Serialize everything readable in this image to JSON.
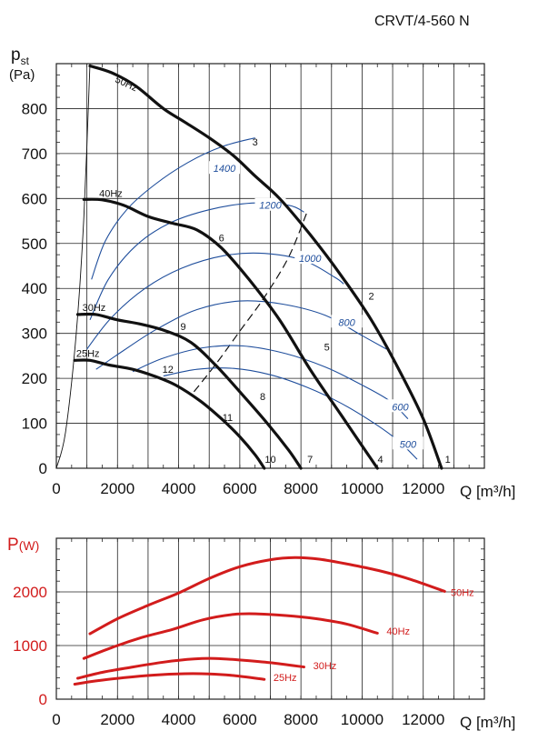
{
  "title": "CRVT/4-560 N",
  "chart_data": [
    {
      "type": "line",
      "id": "pressure",
      "ylabel_main": "p",
      "ylabel_sub": "st",
      "ylabel_unit": "(Pa)",
      "xlabel": "Q [m³/h]",
      "xlim": [
        0,
        14000
      ],
      "ylim": [
        0,
        900
      ],
      "xticks": [
        0,
        2000,
        4000,
        6000,
        8000,
        10000,
        12000
      ],
      "yticks": [
        0,
        100,
        200,
        300,
        400,
        500,
        600,
        700,
        800
      ],
      "xtick_labels": [
        "0",
        "2000",
        "4000",
        "6000",
        "8000",
        "10000",
        "12000"
      ],
      "ytick_labels": [
        "0",
        "100",
        "200",
        "300",
        "400",
        "500",
        "600",
        "700",
        "800"
      ],
      "grid": true,
      "colors": {
        "fan_curve": "#111111",
        "rpm_curve": "#1f4e9c",
        "axis": "#222222"
      },
      "fan_curves": [
        {
          "name": "50Hz",
          "points": [
            [
              1100,
              895
            ],
            [
              1800,
              880
            ],
            [
              2600,
              850
            ],
            [
              3500,
              800
            ],
            [
              4200,
              770
            ],
            [
              5000,
              735
            ],
            [
              5800,
              695
            ],
            [
              6500,
              650
            ],
            [
              7300,
              600
            ],
            [
              8300,
              520
            ],
            [
              9300,
              430
            ],
            [
              10300,
              330
            ],
            [
              11200,
              220
            ],
            [
              12000,
              110
            ],
            [
              12600,
              0
            ]
          ]
        },
        {
          "name": "40Hz",
          "points": [
            [
              900,
              598
            ],
            [
              1500,
              597
            ],
            [
              2200,
              585
            ],
            [
              3000,
              560
            ],
            [
              3800,
              545
            ],
            [
              4600,
              530
            ],
            [
              5400,
              490
            ],
            [
              6300,
              420
            ],
            [
              7300,
              330
            ],
            [
              8300,
              220
            ],
            [
              9300,
              120
            ],
            [
              10000,
              50
            ],
            [
              10500,
              0
            ]
          ]
        },
        {
          "name": "30Hz",
          "points": [
            [
              700,
              342
            ],
            [
              1300,
              342
            ],
            [
              2000,
              330
            ],
            [
              2800,
              320
            ],
            [
              3600,
              305
            ],
            [
              4400,
              280
            ],
            [
              5200,
              230
            ],
            [
              6000,
              170
            ],
            [
              6900,
              100
            ],
            [
              7600,
              40
            ],
            [
              8000,
              0
            ]
          ]
        },
        {
          "name": "25Hz",
          "points": [
            [
              600,
              240
            ],
            [
              1100,
              240
            ],
            [
              1700,
              230
            ],
            [
              2500,
              220
            ],
            [
              3200,
              205
            ],
            [
              3900,
              185
            ],
            [
              4700,
              150
            ],
            [
              5400,
              110
            ],
            [
              6000,
              70
            ],
            [
              6500,
              30
            ],
            [
              6800,
              0
            ]
          ]
        }
      ],
      "rpm_curves": [
        {
          "label": "1400",
          "label_at": [
            5500,
            665
          ],
          "points": [
            [
              1150,
              420
            ],
            [
              1600,
              505
            ],
            [
              2300,
              575
            ],
            [
              3200,
              630
            ],
            [
              4300,
              680
            ],
            [
              5400,
              715
            ],
            [
              6500,
              735
            ]
          ]
        },
        {
          "label": "1200",
          "label_at": [
            7000,
            583
          ],
          "points": [
            [
              1100,
              330
            ],
            [
              1700,
              420
            ],
            [
              2600,
              495
            ],
            [
              3700,
              545
            ],
            [
              5000,
              575
            ],
            [
              6400,
              590
            ],
            [
              7600,
              585
            ],
            [
              8100,
              570
            ]
          ]
        },
        {
          "label": "1000",
          "label_at": [
            8300,
            465
          ],
          "points": [
            [
              1000,
              265
            ],
            [
              1800,
              335
            ],
            [
              2900,
              400
            ],
            [
              4100,
              445
            ],
            [
              5500,
              473
            ],
            [
              6800,
              478
            ],
            [
              8100,
              462
            ],
            [
              9100,
              425
            ],
            [
              9400,
              410
            ]
          ]
        },
        {
          "label": "800",
          "label_at": [
            9500,
            323
          ],
          "points": [
            [
              1300,
              220
            ],
            [
              2200,
              262
            ],
            [
              3300,
              310
            ],
            [
              4600,
              353
            ],
            [
              6000,
              372
            ],
            [
              7400,
              365
            ],
            [
              8800,
              340
            ],
            [
              10000,
              295
            ],
            [
              10800,
              265
            ]
          ]
        },
        {
          "label": "600",
          "label_at": [
            11250,
            135
          ],
          "points": [
            [
              2500,
              215
            ],
            [
              3500,
              245
            ],
            [
              4800,
              268
            ],
            [
              6100,
              272
            ],
            [
              7500,
              255
            ],
            [
              8800,
              225
            ],
            [
              10000,
              185
            ],
            [
              10900,
              150
            ],
            [
              11500,
              110
            ]
          ]
        },
        {
          "label": "500",
          "label_at": [
            11500,
            52
          ],
          "points": [
            [
              3500,
              205
            ],
            [
              4600,
              220
            ],
            [
              5800,
              222
            ],
            [
              7000,
              208
            ],
            [
              8200,
              180
            ],
            [
              9300,
              145
            ],
            [
              10400,
              100
            ],
            [
              11200,
              60
            ],
            [
              11800,
              20
            ]
          ]
        }
      ],
      "system_curve_steep": [
        [
          0,
          0
        ],
        [
          300,
          80
        ],
        [
          650,
          300
        ],
        [
          900,
          560
        ],
        [
          1100,
          900
        ]
      ],
      "system_curve_dashed": [
        [
          4500,
          170
        ],
        [
          5200,
          230
        ],
        [
          6000,
          305
        ],
        [
          6800,
          380
        ],
        [
          7600,
          470
        ],
        [
          8200,
          570
        ]
      ],
      "point_labels": [
        {
          "text": "1",
          "at": [
            12800,
            12
          ]
        },
        {
          "text": "2",
          "at": [
            10300,
            375
          ]
        },
        {
          "text": "3",
          "at": [
            6500,
            718
          ]
        },
        {
          "text": "4",
          "at": [
            10600,
            12
          ]
        },
        {
          "text": "5",
          "at": [
            8850,
            262
          ]
        },
        {
          "text": "6",
          "at": [
            5400,
            505
          ]
        },
        {
          "text": "7",
          "at": [
            8300,
            12
          ]
        },
        {
          "text": "8",
          "at": [
            6750,
            152
          ]
        },
        {
          "text": "9",
          "at": [
            4150,
            307
          ]
        },
        {
          "text": "10",
          "at": [
            7000,
            12
          ]
        },
        {
          "text": "11",
          "at": [
            5600,
            105
          ]
        },
        {
          "text": "12",
          "at": [
            3650,
            212
          ]
        }
      ],
      "series_labels": [
        {
          "text": "50Hz",
          "at": [
            1900,
            860
          ],
          "rotate": 25
        },
        {
          "text": "40Hz",
          "at": [
            1400,
            604
          ],
          "rotate": 0
        },
        {
          "text": "30Hz",
          "at": [
            850,
            350
          ],
          "rotate": 0
        },
        {
          "text": "25Hz",
          "at": [
            650,
            248
          ],
          "rotate": 0
        }
      ]
    },
    {
      "type": "line",
      "id": "power",
      "ylabel_main": "P",
      "ylabel_unit": "(W)",
      "xlabel": "Q [m³/h]",
      "xlim": [
        0,
        14000
      ],
      "ylim": [
        0,
        3000
      ],
      "xticks": [
        0,
        2000,
        4000,
        6000,
        8000,
        10000,
        12000
      ],
      "yticks": [
        0,
        1000,
        2000
      ],
      "xtick_labels": [
        "0",
        "2000",
        "4000",
        "6000",
        "8000",
        "10000",
        "12000"
      ],
      "ytick_labels": [
        "0",
        "1000",
        "2000"
      ],
      "grid": true,
      "colors": {
        "power_curve": "#d21c1c",
        "label": "#d21c1c"
      },
      "series": [
        {
          "name": "50Hz",
          "points": [
            [
              1100,
              1220
            ],
            [
              2000,
              1500
            ],
            [
              3000,
              1750
            ],
            [
              4000,
              1980
            ],
            [
              5000,
              2250
            ],
            [
              6000,
              2470
            ],
            [
              7000,
              2600
            ],
            [
              7800,
              2640
            ],
            [
              8600,
              2610
            ],
            [
              9600,
              2510
            ],
            [
              10600,
              2390
            ],
            [
              11600,
              2230
            ],
            [
              12700,
              2010
            ]
          ]
        },
        {
          "name": "40Hz",
          "points": [
            [
              900,
              760
            ],
            [
              1800,
              960
            ],
            [
              2800,
              1150
            ],
            [
              3800,
              1300
            ],
            [
              4800,
              1480
            ],
            [
              5800,
              1580
            ],
            [
              6600,
              1590
            ],
            [
              7500,
              1560
            ],
            [
              8500,
              1500
            ],
            [
              9500,
              1400
            ],
            [
              10500,
              1230
            ]
          ]
        },
        {
          "name": "30Hz",
          "points": [
            [
              700,
              390
            ],
            [
              1500,
              500
            ],
            [
              2500,
              600
            ],
            [
              3500,
              690
            ],
            [
              4500,
              750
            ],
            [
              5200,
              760
            ],
            [
              6000,
              730
            ],
            [
              7000,
              680
            ],
            [
              8100,
              600
            ]
          ]
        },
        {
          "name": "25Hz",
          "points": [
            [
              600,
              280
            ],
            [
              1300,
              340
            ],
            [
              2200,
              400
            ],
            [
              3200,
              450
            ],
            [
              4200,
              475
            ],
            [
              5000,
              470
            ],
            [
              5800,
              440
            ],
            [
              6800,
              370
            ]
          ]
        }
      ],
      "series_label_at": [
        [
          12900,
          1925
        ],
        [
          10800,
          1200
        ],
        [
          8400,
          560
        ],
        [
          7100,
          340
        ]
      ]
    }
  ]
}
